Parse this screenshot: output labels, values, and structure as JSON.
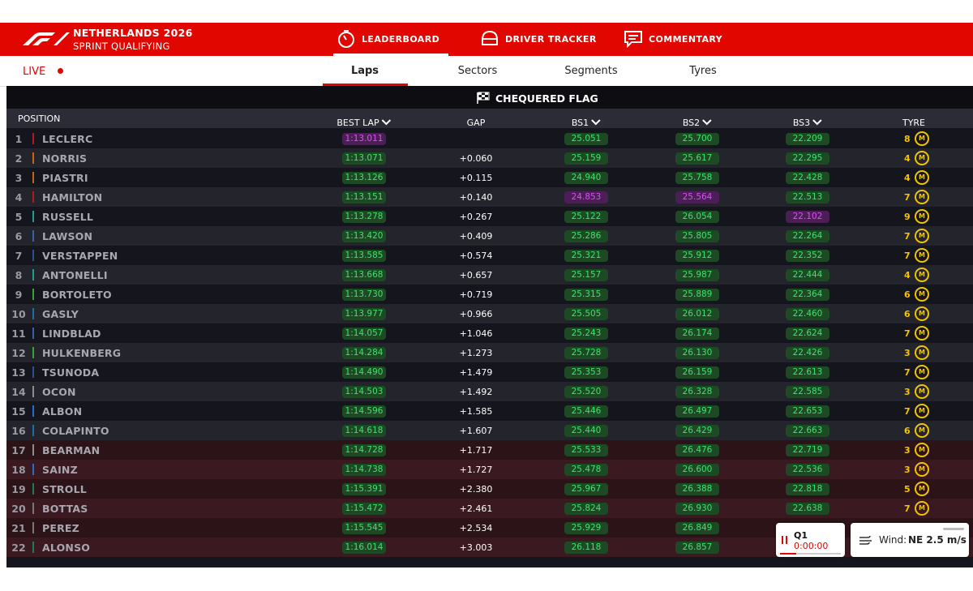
{
  "header": {
    "title": "NETHERLANDS 2026",
    "subtitle": "SPRINT QUALIFYING",
    "tabs": [
      "LEADERBOARD",
      "DRIVER TRACKER",
      "COMMENTARY"
    ]
  },
  "subnav": {
    "live": "LIVE",
    "tabs": [
      "Laps",
      "Sectors",
      "Segments",
      "Tyres"
    ]
  },
  "banner": "CHEQUERED FLAG",
  "table": {
    "columns": [
      "POSITION",
      "BEST LAP",
      "GAP",
      "BS1",
      "BS2",
      "BS3",
      "TYRE"
    ],
    "rows": [
      {
        "position": 1,
        "driver": "LECLERC",
        "color": "#b01a22",
        "best_lap": "1:13.011",
        "bs1": "25.051",
        "bs2": "25.700",
        "bs3": "22.209",
        "laps": 8,
        "tyre": "M",
        "purple": [
          "best_lap"
        ]
      },
      {
        "position": 2,
        "driver": "NORRIS",
        "color": "#c4650f",
        "best_lap": "1:13.071",
        "gap": "+0.060",
        "bs1": "25.159",
        "bs2": "25.617",
        "bs3": "22.295",
        "laps": 4,
        "tyre": "M"
      },
      {
        "position": 3,
        "driver": "PIASTRI",
        "color": "#c4650f",
        "best_lap": "1:13.126",
        "gap": "+0.115",
        "bs1": "24.940",
        "bs2": "25.758",
        "bs3": "22.428",
        "laps": 4,
        "tyre": "M"
      },
      {
        "position": 4,
        "driver": "HAMILTON",
        "color": "#b01a22",
        "best_lap": "1:13.151",
        "gap": "+0.140",
        "bs1": "24.853",
        "bs2": "25.564",
        "bs3": "22.513",
        "laps": 7,
        "tyre": "M",
        "purple": [
          "bs1",
          "bs2"
        ]
      },
      {
        "position": 5,
        "driver": "RUSSELL",
        "color": "#1f9e8a",
        "best_lap": "1:13.278",
        "gap": "+0.267",
        "bs1": "25.122",
        "bs2": "26.054",
        "bs3": "22.102",
        "laps": 9,
        "tyre": "M",
        "purple": [
          "bs3"
        ]
      },
      {
        "position": 6,
        "driver": "LAWSON",
        "color": "#3d5fa8",
        "best_lap": "1:13.420",
        "gap": "+0.409",
        "bs1": "25.286",
        "bs2": "25.805",
        "bs3": "22.264",
        "laps": 7,
        "tyre": "M"
      },
      {
        "position": 7,
        "driver": "VERSTAPPEN",
        "color": "#2f4f8f",
        "best_lap": "1:13.585",
        "gap": "+0.574",
        "bs1": "25.321",
        "bs2": "25.912",
        "bs3": "22.352",
        "laps": 7,
        "tyre": "M"
      },
      {
        "position": 8,
        "driver": "ANTONELLI",
        "color": "#1f9e8a",
        "best_lap": "1:13.668",
        "gap": "+0.657",
        "bs1": "25.157",
        "bs2": "25.987",
        "bs3": "22.444",
        "laps": 4,
        "tyre": "M"
      },
      {
        "position": 9,
        "driver": "BORTOLETO",
        "color": "#3aa03a",
        "best_lap": "1:13.730",
        "gap": "+0.719",
        "bs1": "25.315",
        "bs2": "25.889",
        "bs3": "22.364",
        "laps": 6,
        "tyre": "M"
      },
      {
        "position": 10,
        "driver": "GASLY",
        "color": "#1d6f9e",
        "best_lap": "1:13.977",
        "gap": "+0.966",
        "bs1": "25.505",
        "bs2": "26.012",
        "bs3": "22.460",
        "laps": 6,
        "tyre": "M"
      },
      {
        "position": 11,
        "driver": "LINDBLAD",
        "color": "#3d5fa8",
        "best_lap": "1:14.057",
        "gap": "+1.046",
        "bs1": "25.243",
        "bs2": "26.174",
        "bs3": "22.624",
        "laps": 7,
        "tyre": "M"
      },
      {
        "position": 12,
        "driver": "HULKENBERG",
        "color": "#3aa03a",
        "best_lap": "1:14.284",
        "gap": "+1.273",
        "bs1": "25.728",
        "bs2": "26.130",
        "bs3": "22.426",
        "laps": 3,
        "tyre": "M"
      },
      {
        "position": 13,
        "driver": "TSUNODA",
        "color": "#2f4f8f",
        "best_lap": "1:14.490",
        "gap": "+1.479",
        "bs1": "25.353",
        "bs2": "26.159",
        "bs3": "22.613",
        "laps": 7,
        "tyre": "M"
      },
      {
        "position": 14,
        "driver": "OCON",
        "color": "#8a8d90",
        "best_lap": "1:14.503",
        "gap": "+1.492",
        "bs1": "25.520",
        "bs2": "26.328",
        "bs3": "22.585",
        "laps": 3,
        "tyre": "M"
      },
      {
        "position": 15,
        "driver": "ALBON",
        "color": "#2a6fbf",
        "best_lap": "1:14.596",
        "gap": "+1.585",
        "bs1": "25.446",
        "bs2": "26.497",
        "bs3": "22.653",
        "laps": 7,
        "tyre": "M"
      },
      {
        "position": 16,
        "driver": "COLAPINTO",
        "color": "#1d6f9e",
        "best_lap": "1:14.618",
        "gap": "+1.607",
        "bs1": "25.440",
        "bs2": "26.429",
        "bs3": "22.663",
        "laps": 6,
        "tyre": "M"
      },
      {
        "position": 17,
        "driver": "BEARMAN",
        "color": "#8a8d90",
        "best_lap": "1:14.728",
        "gap": "+1.717",
        "bs1": "25.533",
        "bs2": "26.476",
        "bs3": "22.719",
        "laps": 3,
        "tyre": "M",
        "eliminated": true
      },
      {
        "position": 18,
        "driver": "SAINZ",
        "color": "#2a6fbf",
        "best_lap": "1:14.738",
        "gap": "+1.727",
        "bs1": "25.478",
        "bs2": "26.600",
        "bs3": "22.536",
        "laps": 3,
        "tyre": "M",
        "eliminated": true
      },
      {
        "position": 19,
        "driver": "STROLL",
        "color": "#1d7a5a",
        "best_lap": "1:15.391",
        "gap": "+2.380",
        "bs1": "25.967",
        "bs2": "26.388",
        "bs3": "22.818",
        "laps": 5,
        "tyre": "M",
        "eliminated": true
      },
      {
        "position": 20,
        "driver": "BOTTAS",
        "color": "#777777",
        "best_lap": "1:15.472",
        "gap": "+2.461",
        "bs1": "25.824",
        "bs2": "26.930",
        "bs3": "22.638",
        "laps": 7,
        "tyre": "M",
        "eliminated": true
      },
      {
        "position": 21,
        "driver": "PEREZ",
        "color": "#777777",
        "best_lap": "1:15.545",
        "gap": "+2.534",
        "bs1": "25.929",
        "bs2": "26.849",
        "eliminated": true
      },
      {
        "position": 22,
        "driver": "ALONSO",
        "color": "#1d7a5a",
        "best_lap": "1:16.014",
        "gap": "+3.003",
        "bs1": "26.118",
        "bs2": "26.857",
        "eliminated": true
      }
    ]
  },
  "session": {
    "label": "Q1",
    "time": "0:00:00"
  },
  "weather": {
    "label": "Wind:",
    "value": "NE 2.5 m/s"
  }
}
